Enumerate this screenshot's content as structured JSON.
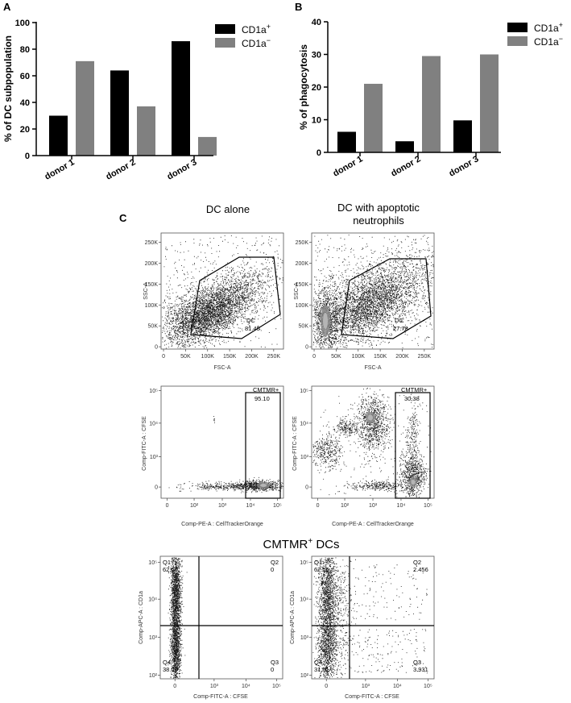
{
  "colors": {
    "cd1a_pos": "#000000",
    "cd1a_neg": "#808080",
    "dots": "#1a1a1a",
    "dense": "#8a8a8a"
  },
  "chart_data": [
    {
      "type": "bar",
      "panel": "A",
      "ylabel": "% of DC subpopulation",
      "categories": [
        "donor 1",
        "donor 2",
        "donor 3"
      ],
      "ylim": [
        0,
        100
      ],
      "yticks": [
        "0",
        "20",
        "40",
        "60",
        "80",
        "100"
      ],
      "series": [
        {
          "name": "CD1a+",
          "label_main": "CD1a",
          "label_sup": "+",
          "values": [
            30,
            64,
            86
          ]
        },
        {
          "name": "CD1a−",
          "label_main": "CD1a",
          "label_sup": "−",
          "values": [
            71,
            37,
            14
          ]
        }
      ],
      "legend": "top-right"
    },
    {
      "type": "bar",
      "panel": "B",
      "ylabel": "% of phagocytosis",
      "categories": [
        "donor 1",
        "donor 2",
        "donor 3"
      ],
      "ylim": [
        0,
        40
      ],
      "yticks": [
        "0",
        "10",
        "20",
        "30",
        "40"
      ],
      "series": [
        {
          "name": "CD1a+",
          "label_main": "CD1a",
          "label_sup": "+",
          "values": [
            6.3,
            3.4,
            9.8
          ]
        },
        {
          "name": "CD1a−",
          "label_main": "CD1a",
          "label_sup": "−",
          "values": [
            21,
            29.5,
            30
          ]
        }
      ],
      "legend": "top-right"
    }
  ],
  "panel_c": {
    "letter": "C",
    "col1_header": "DC alone",
    "col2_header_line1": "DC  with apoptotic",
    "col2_header_line2": "neutrophils",
    "section_header_main": "CMTMR",
    "section_header_sup": "+",
    "section_header_rest": " DCs",
    "row1": {
      "ylabel": "SSC-A",
      "xlabel": "FSC-A",
      "ticks_y": [
        "0",
        "50K",
        "100K",
        "150K",
        "200K",
        "250K"
      ],
      "ticks_x": [
        "0",
        "50K",
        "100K",
        "150K",
        "200K",
        "250K"
      ],
      "gate_name": "DC",
      "left_value": "81.45",
      "right_value": "27.78"
    },
    "row2": {
      "ylabel": "Comp-FITC-A : CFSE",
      "xlabel": "Comp-PE-A : CellTrackerOrange",
      "ticks_y": [
        "0",
        "10³",
        "10⁴",
        "10⁵"
      ],
      "ticks_x": [
        "0",
        "10²",
        "10³",
        "10⁴",
        "10⁵"
      ],
      "gate_name": "CMTMR+",
      "left_value": "95.10",
      "right_value": "30.38"
    },
    "row3": {
      "ylabel": "Comp-APC-A : CD1a",
      "xlabel": "Comp-FITC-A : CFSE",
      "ticks_y": [
        "10²",
        "10³",
        "10⁴",
        "10⁵"
      ],
      "ticks_x": [
        "0",
        "10³",
        "10⁴",
        "10⁵"
      ],
      "left": {
        "q1": "Q1",
        "q1v": "62.00",
        "q2": "Q2",
        "q2v": "0",
        "q3": "Q3",
        "q3v": "0",
        "q4": "Q4",
        "q4v": "38.00"
      },
      "right": {
        "q1": "Q1",
        "q1v": "62.00",
        "q2": "Q2",
        "q2v": "2.456",
        "q3": "Q3",
        "q3v": "3.931",
        "q4": "Q4",
        "q4v": "31.61"
      }
    }
  }
}
